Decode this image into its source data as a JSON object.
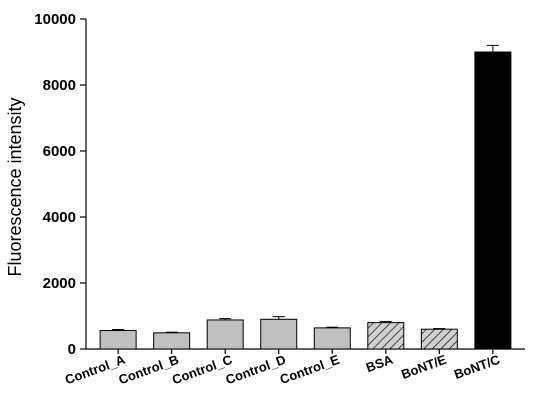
{
  "chart_data": {
    "type": "bar",
    "title": "",
    "xlabel": "",
    "ylabel": "Fluorescence intensity",
    "ylim": [
      0,
      10000
    ],
    "yticks": [
      0,
      2000,
      4000,
      6000,
      8000,
      10000
    ],
    "grid": false,
    "legend": "none",
    "categories": [
      "Control_A",
      "Control_B",
      "Control_C",
      "Control_D",
      "Control_E",
      "BSA",
      "BoNT/E",
      "BoNT/C"
    ],
    "values": [
      560,
      490,
      880,
      900,
      640,
      800,
      600,
      9000
    ],
    "errors": [
      30,
      20,
      40,
      80,
      20,
      30,
      20,
      200
    ],
    "fills": [
      "gray",
      "gray",
      "gray",
      "gray",
      "gray",
      "hatched",
      "hatched",
      "black"
    ],
    "colors": {
      "gray": "#c0c0c0",
      "hatched": "#c8c8c8",
      "black": "#000000",
      "axis": "#000000"
    }
  }
}
